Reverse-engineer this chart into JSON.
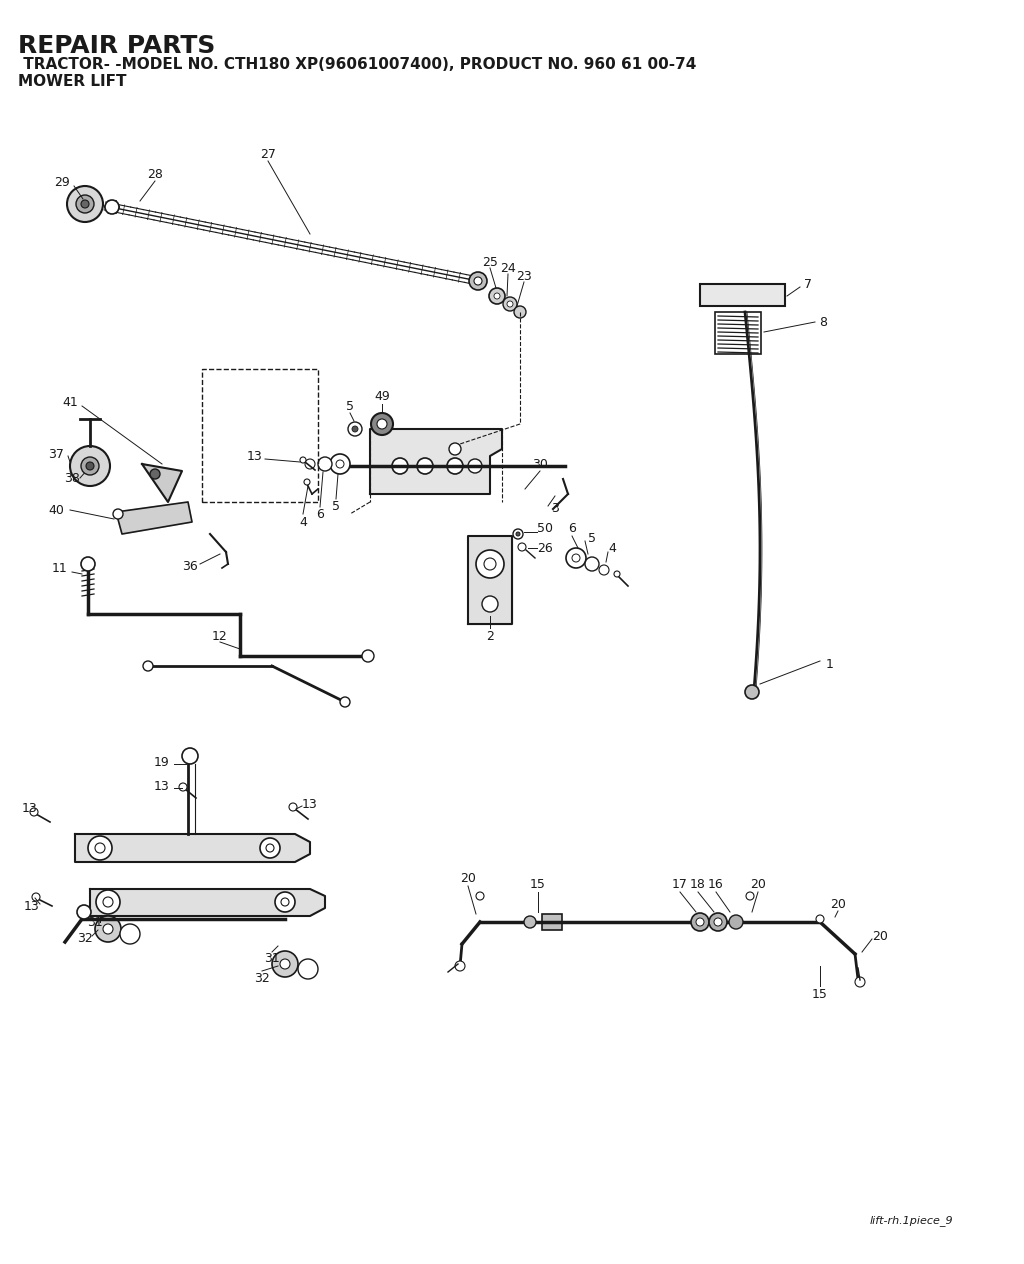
{
  "title1": "REPAIR PARTS",
  "title2": " TRACTOR- -MODEL NO. CTH180 XP(96061007400), PRODUCT NO. 960 61 00-74",
  "title3": "MOWER LIFT",
  "footer": "lift-rh.1piece_9",
  "bg_color": "#ffffff",
  "line_color": "#1a1a1a",
  "text_color": "#1a1a1a",
  "label_fontsize": 9,
  "title1_fontsize": 18,
  "title2_fontsize": 11,
  "title3_fontsize": 11
}
